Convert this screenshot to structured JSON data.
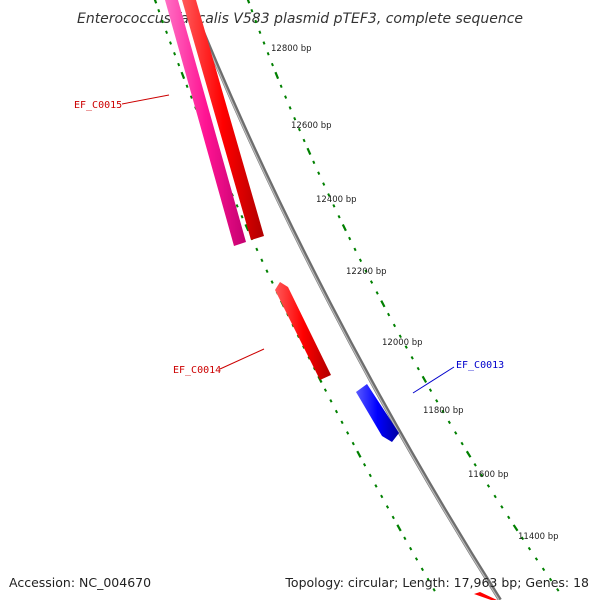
{
  "title": "Enterococcus faecalis V583 plasmid pTEF3, complete sequence",
  "footer": {
    "accession": "Accession: NC_004670",
    "summary": "Topology: circular; Length: 17,963 bp; Genes: 18"
  },
  "ticks": [
    {
      "label": "12800 bp"
    },
    {
      "label": "12600 bp"
    },
    {
      "label": "12400 bp"
    },
    {
      "label": "12200 bp"
    },
    {
      "label": "12000 bp"
    },
    {
      "label": "11800 bp"
    },
    {
      "label": "11600 bp"
    },
    {
      "label": "11400 bp"
    }
  ],
  "genes": [
    {
      "label": "EF_C0015",
      "strand": "forward",
      "color": "#ff1493"
    },
    {
      "label": "EF_C0014",
      "strand": "forward",
      "color": "#dd0000"
    },
    {
      "label": "EF_C0013",
      "strand": "reverse",
      "color": "#0000dd"
    }
  ],
  "colors": {
    "backbone": "#808080",
    "ticks": "#008000",
    "forward_track": "#ff0000",
    "label_red": "#cc0000",
    "label_blue": "#0000cc"
  }
}
